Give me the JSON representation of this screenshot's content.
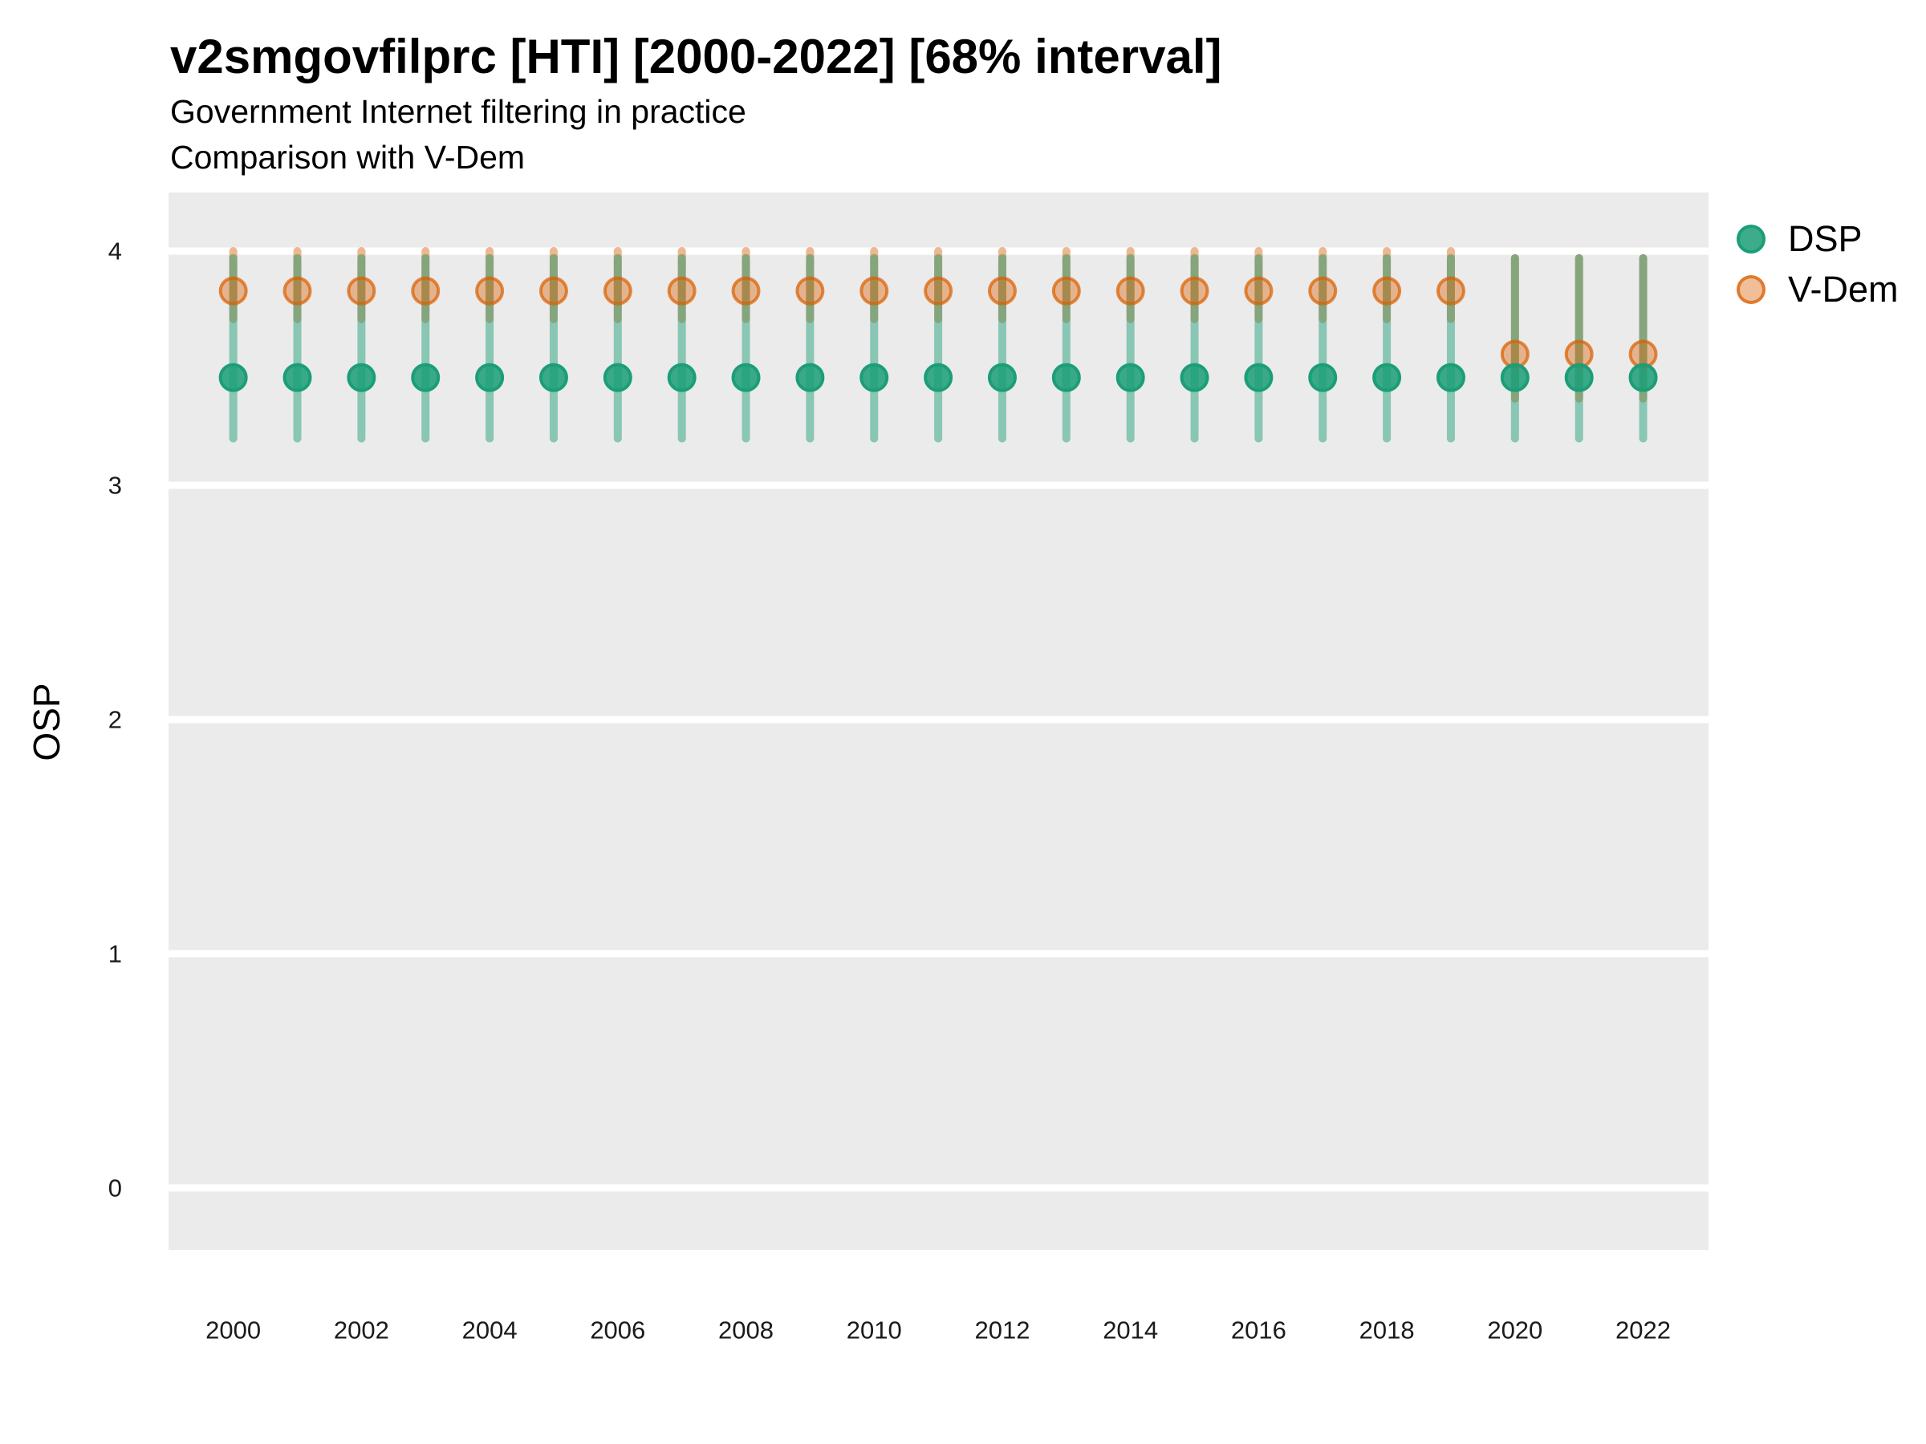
{
  "header": {
    "title": "v2smgovfilprc [HTI] [2000-2022] [68% interval]",
    "subtitle1": "Government Internet filtering in practice",
    "subtitle2": "Comparison with V-Dem"
  },
  "axes": {
    "y_label": "OSP"
  },
  "legend": {
    "items": [
      {
        "label": "DSP",
        "color": "#1b9e77"
      },
      {
        "label": "V-Dem",
        "color": "#d95f02"
      }
    ]
  },
  "chart_data": {
    "type": "pointrange",
    "title": "v2smgovfilprc [HTI] [2000-2022] [68% interval]",
    "subtitle": "Government Internet filtering in practice — Comparison with V-Dem",
    "xlabel": "",
    "ylabel": "OSP",
    "x": [
      2000,
      2001,
      2002,
      2003,
      2004,
      2005,
      2006,
      2007,
      2008,
      2009,
      2010,
      2011,
      2012,
      2013,
      2014,
      2015,
      2016,
      2017,
      2018,
      2019,
      2020,
      2021,
      2022
    ],
    "series": [
      {
        "name": "DSP",
        "color": "#1b9e77",
        "estimates": [
          3.46,
          3.46,
          3.46,
          3.46,
          3.46,
          3.46,
          3.46,
          3.46,
          3.46,
          3.46,
          3.46,
          3.46,
          3.46,
          3.46,
          3.46,
          3.46,
          3.46,
          3.46,
          3.46,
          3.46,
          3.46,
          3.46,
          3.46
        ],
        "lower": [
          3.2,
          3.2,
          3.2,
          3.2,
          3.2,
          3.2,
          3.2,
          3.2,
          3.2,
          3.2,
          3.2,
          3.2,
          3.2,
          3.2,
          3.2,
          3.2,
          3.2,
          3.2,
          3.2,
          3.2,
          3.2,
          3.2,
          3.2
        ],
        "upper": [
          3.97,
          3.97,
          3.97,
          3.97,
          3.97,
          3.97,
          3.97,
          3.97,
          3.97,
          3.97,
          3.97,
          3.97,
          3.97,
          3.97,
          3.97,
          3.97,
          3.97,
          3.97,
          3.97,
          3.97,
          3.97,
          3.97,
          3.97
        ]
      },
      {
        "name": "V-Dem",
        "color": "#d95f02",
        "estimates": [
          3.83,
          3.83,
          3.83,
          3.83,
          3.83,
          3.83,
          3.83,
          3.83,
          3.83,
          3.83,
          3.83,
          3.83,
          3.83,
          3.83,
          3.83,
          3.83,
          3.83,
          3.83,
          3.83,
          3.83,
          3.56,
          3.56,
          3.56
        ],
        "lower": [
          3.71,
          3.71,
          3.71,
          3.71,
          3.71,
          3.71,
          3.71,
          3.71,
          3.71,
          3.71,
          3.71,
          3.71,
          3.71,
          3.71,
          3.71,
          3.71,
          3.71,
          3.71,
          3.71,
          3.71,
          3.37,
          3.37,
          3.37
        ],
        "upper": [
          4.0,
          4.0,
          4.0,
          4.0,
          4.0,
          4.0,
          4.0,
          4.0,
          4.0,
          4.0,
          4.0,
          4.0,
          4.0,
          4.0,
          4.0,
          4.0,
          4.0,
          4.0,
          4.0,
          4.0,
          3.97,
          3.97,
          3.97
        ]
      }
    ],
    "interval": "68%",
    "country": "HTI",
    "xticks": [
      2000,
      2002,
      2004,
      2006,
      2008,
      2010,
      2012,
      2014,
      2016,
      2018,
      2020,
      2022
    ],
    "yticks": [
      4,
      3,
      2,
      1,
      0
    ],
    "xlim": [
      1998.99,
      2023.02
    ],
    "ylim": [
      -0.264,
      4.25
    ],
    "grid": "horizontal-major-only",
    "legend_position": "right",
    "panel_background": "#EBEBEB",
    "gridline_color": "#FFFFFF"
  }
}
